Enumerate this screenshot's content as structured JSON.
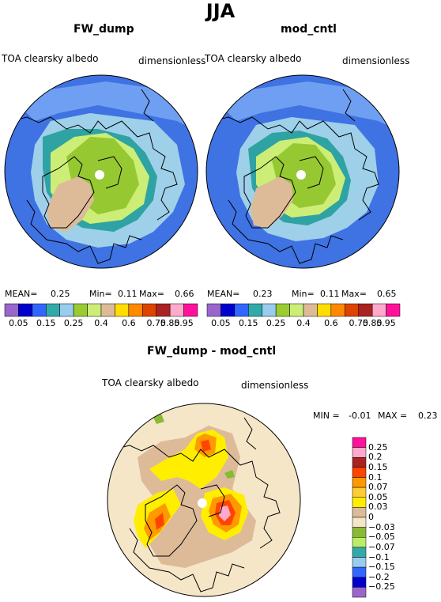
{
  "season": "JJA",
  "panels": [
    {
      "title": "FW_dump",
      "variable": "TOA clearsky albedo",
      "units": "dimensionless",
      "stats": {
        "mean_label": "MEAN=",
        "mean": "0.25",
        "min_label": "Min=",
        "min": "0.11",
        "max_label": "Max=",
        "max": "0.66"
      }
    },
    {
      "title": "mod_cntl",
      "variable": "TOA clearsky albedo",
      "units": "dimensionless",
      "stats": {
        "mean_label": "MEAN=",
        "mean": "0.23",
        "min_label": "Min=",
        "min": "0.11",
        "max_label": "Max=",
        "max": "0.65"
      }
    },
    {
      "title": "FW_dump - mod_cntl",
      "variable": "TOA clearsky albedo",
      "units": "dimensionless",
      "stats": {
        "min_label": "MIN =",
        "min": "-0.01",
        "max_label": "MAX =",
        "max": "0.23"
      }
    }
  ],
  "colorbar_abs": {
    "colors": [
      "#9966cc",
      "#0000cc",
      "#3366ff",
      "#33aaaa",
      "#99ccee",
      "#99cc33",
      "#ccee77",
      "#ddbb99",
      "#ffdd00",
      "#ff8800",
      "#dd4400",
      "#aa2222",
      "#ffaacc",
      "#ff1199"
    ],
    "ticks": [
      "0.05",
      "0.15",
      "0.25",
      "0.4",
      "0.6",
      "0.75",
      "0.85",
      "0.95"
    ]
  },
  "colorbar_diff": {
    "colors_top_to_bottom": [
      "#ff1199",
      "#ffaacc",
      "#aa2222",
      "#ff4400",
      "#ff9900",
      "#ffcc33",
      "#ffee00",
      "#ddbb99",
      "#f5e6c8",
      "#88bb33",
      "#bbee66",
      "#33aaaa",
      "#99ccee",
      "#3366ff",
      "#0000cc",
      "#9966cc"
    ],
    "labels_top_to_bottom": [
      "0.25",
      "0.2",
      "0.15",
      "0.1",
      "0.07",
      "0.05",
      "0.03",
      "0",
      "−0.03",
      "−0.05",
      "−0.07",
      "−0.1",
      "−0.15",
      "−0.2",
      "−0.25"
    ]
  }
}
